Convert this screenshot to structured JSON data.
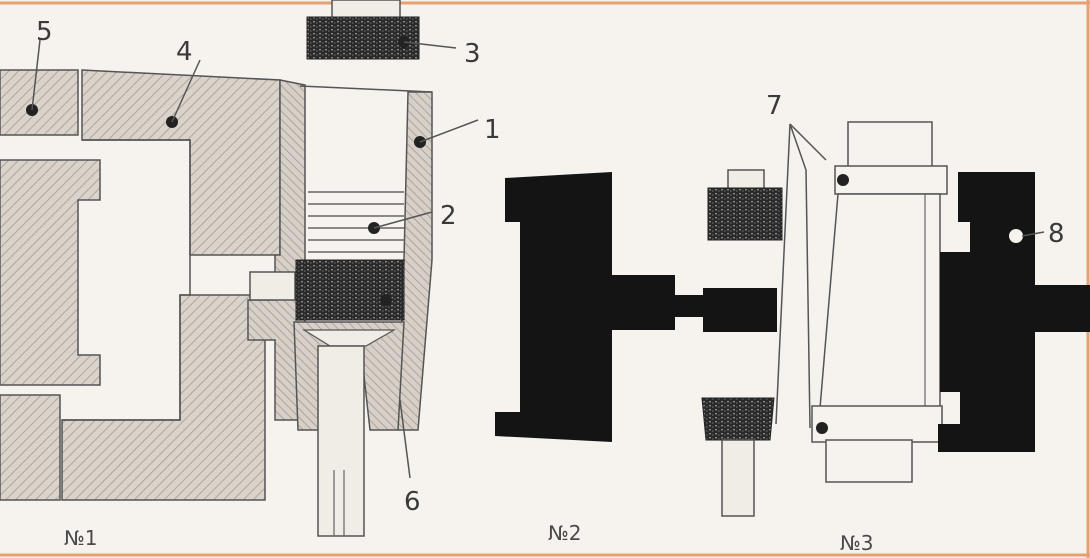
{
  "labels": {
    "l1": "1",
    "l2": "2",
    "l3": "3",
    "l4": "4",
    "l5": "5",
    "l6": "6",
    "l7": "7",
    "l8": "8"
  },
  "captions": {
    "c1": "№1",
    "c2": "№2",
    "c3": "№3"
  },
  "colors": {
    "hatch_fill": "#d8d2ca",
    "dark_fill": "#141414",
    "frame_orange": "#e8a070",
    "background": "#f6f3ee"
  }
}
